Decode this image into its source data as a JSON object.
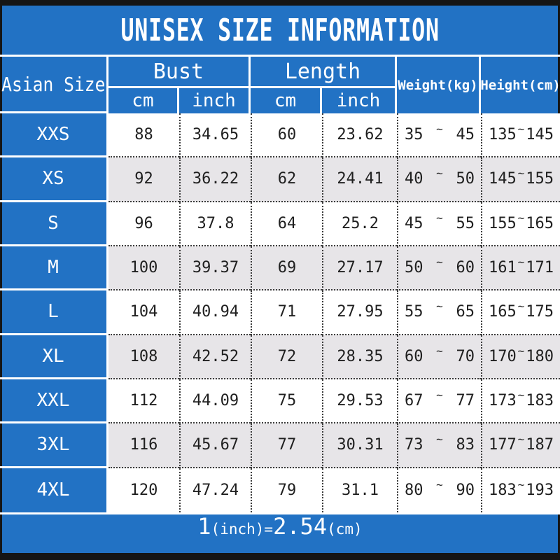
{
  "title": "UNISEX SIZE INFORMATION",
  "footer": {
    "note": "1(inch)=2.54(cm)",
    "parts": [
      "1",
      "(inch)",
      "=",
      "2.54",
      "(cm)"
    ]
  },
  "colors": {
    "blue": "#2272c4",
    "row_alt_gray": "#e7e5e8",
    "row_white": "#ffffff",
    "bar_dark": "#151515",
    "text_dark": "#1f1f1f",
    "text_light": "#ffffff"
  },
  "table": {
    "corner_header": "Asian Size",
    "groups": [
      {
        "label": "Bust",
        "sub": [
          "cm",
          "inch"
        ]
      },
      {
        "label": "Length",
        "sub": [
          "cm",
          "inch"
        ]
      }
    ],
    "single_headers": [
      "Weight(kg)",
      "Height(cm)"
    ],
    "range_separator": "~",
    "rows": [
      {
        "size": "XXS",
        "bust_cm": "88",
        "bust_inch": "34.65",
        "length_cm": "60",
        "length_inch": "23.62",
        "weight_min": "35",
        "weight_max": "45",
        "height_min": "135",
        "height_max": "145"
      },
      {
        "size": "XS",
        "bust_cm": "92",
        "bust_inch": "36.22",
        "length_cm": "62",
        "length_inch": "24.41",
        "weight_min": "40",
        "weight_max": "50",
        "height_min": "145",
        "height_max": "155"
      },
      {
        "size": "S",
        "bust_cm": "96",
        "bust_inch": "37.8",
        "length_cm": "64",
        "length_inch": "25.2",
        "weight_min": "45",
        "weight_max": "55",
        "height_min": "155",
        "height_max": "165"
      },
      {
        "size": "M",
        "bust_cm": "100",
        "bust_inch": "39.37",
        "length_cm": "69",
        "length_inch": "27.17",
        "weight_min": "50",
        "weight_max": "60",
        "height_min": "161",
        "height_max": "171"
      },
      {
        "size": "L",
        "bust_cm": "104",
        "bust_inch": "40.94",
        "length_cm": "71",
        "length_inch": "27.95",
        "weight_min": "55",
        "weight_max": "65",
        "height_min": "165",
        "height_max": "175"
      },
      {
        "size": "XL",
        "bust_cm": "108",
        "bust_inch": "42.52",
        "length_cm": "72",
        "length_inch": "28.35",
        "weight_min": "60",
        "weight_max": "70",
        "height_min": "170",
        "height_max": "180"
      },
      {
        "size": "XXL",
        "bust_cm": "112",
        "bust_inch": "44.09",
        "length_cm": "75",
        "length_inch": "29.53",
        "weight_min": "67",
        "weight_max": "77",
        "height_min": "173",
        "height_max": "183"
      },
      {
        "size": "3XL",
        "bust_cm": "116",
        "bust_inch": "45.67",
        "length_cm": "77",
        "length_inch": "30.31",
        "weight_min": "73",
        "weight_max": "83",
        "height_min": "177",
        "height_max": "187"
      },
      {
        "size": "4XL",
        "bust_cm": "120",
        "bust_inch": "47.24",
        "length_cm": "79",
        "length_inch": "31.1",
        "weight_min": "80",
        "weight_max": "90",
        "height_min": "183",
        "height_max": "193"
      }
    ]
  },
  "chart_data": {
    "type": "table",
    "title": "UNISEX SIZE INFORMATION",
    "columns": [
      "Asian Size",
      "Bust cm",
      "Bust inch",
      "Length cm",
      "Length inch",
      "Weight(kg)",
      "Height(cm)"
    ],
    "rows": [
      [
        "XXS",
        88,
        34.65,
        60,
        23.62,
        "35~45",
        "135~145"
      ],
      [
        "XS",
        92,
        36.22,
        62,
        24.41,
        "40~50",
        "145~155"
      ],
      [
        "S",
        96,
        37.8,
        64,
        25.2,
        "45~55",
        "155~165"
      ],
      [
        "M",
        100,
        39.37,
        69,
        27.17,
        "50~60",
        "161~171"
      ],
      [
        "L",
        104,
        40.94,
        71,
        27.95,
        "55~65",
        "165~175"
      ],
      [
        "XL",
        108,
        42.52,
        72,
        28.35,
        "60~70",
        "170~180"
      ],
      [
        "XXL",
        112,
        44.09,
        75,
        29.53,
        "67~77",
        "173~183"
      ],
      [
        "3XL",
        116,
        45.67,
        77,
        30.31,
        "73~83",
        "177~187"
      ],
      [
        "4XL",
        120,
        47.24,
        79,
        31.1,
        "80~90",
        "183~193"
      ]
    ],
    "note": "1(inch)=2.54(cm)"
  }
}
